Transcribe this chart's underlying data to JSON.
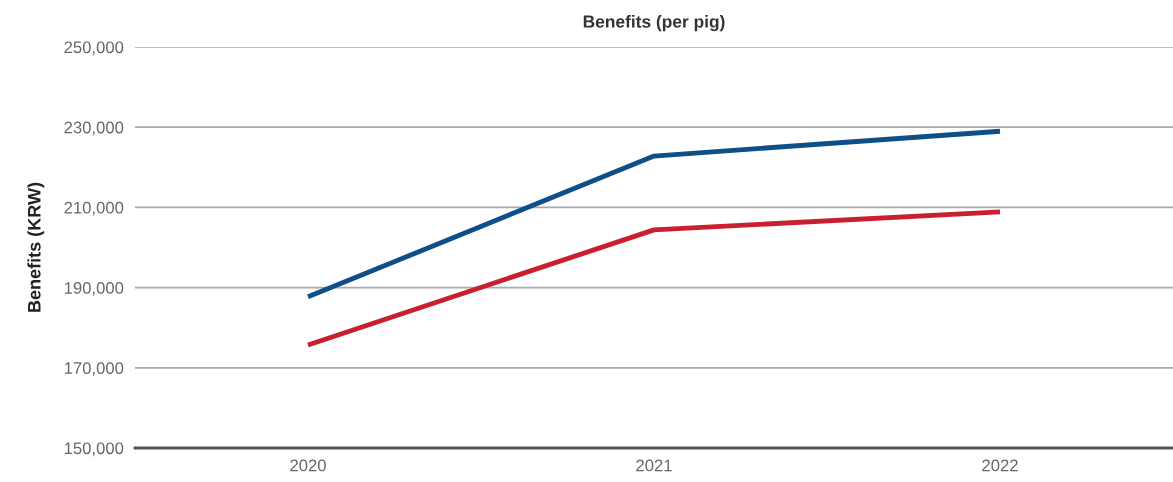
{
  "chart_data": {
    "type": "line",
    "title": "Benefits (per pig)",
    "ylabel": "Benefits (KRW)",
    "categories": [
      "2020",
      "2021",
      "2022"
    ],
    "series": [
      {
        "color": "#0e4f88",
        "values": [
          187700,
          222800,
          229000
        ]
      },
      {
        "color": "#c8202f",
        "values": [
          175700,
          204400,
          208900
        ]
      }
    ],
    "ylim": [
      150000,
      250000
    ],
    "yticks": [
      {
        "value": 150000,
        "label": "150,000"
      },
      {
        "value": 170000,
        "label": "170,000"
      },
      {
        "value": 190000,
        "label": "190,000"
      },
      {
        "value": 210000,
        "label": "210,000"
      },
      {
        "value": 230000,
        "label": "230,000"
      },
      {
        "value": 250000,
        "label": "250,000"
      }
    ],
    "grid": "y",
    "legend": false,
    "marker": "none",
    "line_style": "solid"
  }
}
